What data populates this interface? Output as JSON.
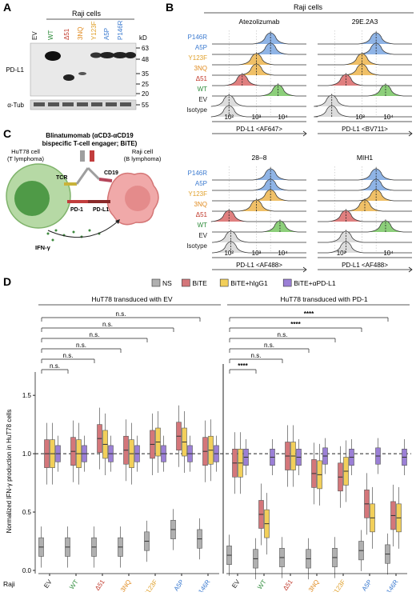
{
  "panel_labels": {
    "a": "A",
    "b": "B",
    "c": "C",
    "d": "D"
  },
  "colors": {
    "EV": "#222222",
    "WT": "#2e8b3a",
    "d51": "#c0392b",
    "3NQ": "#e08a1e",
    "Y123F": "#e0a02a",
    "A5P": "#3c7bd0",
    "P146R": "#3c7bd0",
    "NS": "#b0b0b0",
    "BiTE": "#d4767a",
    "hIgG1": "#f2cf5a",
    "aPDL1": "#9b7fd6",
    "fill_P146R": "#8fb4e6",
    "fill_A5P": "#8fb4e6",
    "fill_Y123F": "#f0c067",
    "fill_3NQ": "#f0c067",
    "fill_d51": "#e07f7f",
    "fill_WT": "#8ccf7a",
    "fill_EV": "#dcdcdc",
    "fill_Iso": "#dcdcdc"
  },
  "panel_a": {
    "title": "Raji cells",
    "lanes": [
      "EV",
      "WT",
      "Δ51",
      "3NQ",
      "Y123F",
      "A5P",
      "P146R"
    ],
    "kd_label": "kD",
    "markers": [
      "63",
      "48",
      "35",
      "25",
      "20",
      "55"
    ],
    "row_labels": [
      "PD-L1",
      "α-Tub"
    ]
  },
  "panel_b": {
    "title": "Raji cells",
    "row_labels": [
      "P146R",
      "A5P",
      "Y123F",
      "3NQ",
      "Δ51",
      "WT",
      "EV",
      "Isotype"
    ],
    "plots": [
      {
        "title": "Atezolizumab",
        "xlabel": "PD-L1 <AF647>",
        "ticks": [
          "10²",
          "10³",
          "10⁴"
        ]
      },
      {
        "title": "29E.2A3",
        "xlabel": "PD-L1 <BV711>",
        "ticks": [
          "10³",
          "10⁴"
        ]
      },
      {
        "title": "28–8",
        "xlabel": "PD-L1 <AF488>",
        "ticks": [
          "10²",
          "10³",
          "10⁴"
        ]
      },
      {
        "title": "MIH1",
        "xlabel": "PD-L1 <AF488>",
        "ticks": [
          "10²",
          "10⁴"
        ]
      }
    ]
  },
  "panel_c": {
    "title1": "Blinatumomab (αCD3-αCD19",
    "title2": "bispecific T-cell engager; BiTE)",
    "t_cell1": "HuT78 cell",
    "t_cell2": "(T lymphoma)",
    "b_cell1": "Raji cell",
    "b_cell2": "(B lymphoma)",
    "tcr": "TCR",
    "cd19": "CD19",
    "pd1": "PD-1",
    "pdl1": "PD-L1",
    "ifn": "IFN-γ"
  },
  "panel_d": {
    "legend": [
      "NS",
      "BiTE",
      "BiTE+hIgG1",
      "BiTE+αPD-L1"
    ],
    "group_left": "HuT78 transduced with EV",
    "group_right": "HuT78 transduced with PD-1",
    "ylabel": "Normalized IFN-γ production in HuT78 cells",
    "yticks": [
      "0.0",
      "0.5",
      "1.0",
      "1.5"
    ],
    "x_prefix": "Raji",
    "sig_left": [
      "n.s.",
      "n.s.",
      "n.s.",
      "n.s.",
      "n.s.",
      "n.s."
    ],
    "sig_right": [
      "****",
      "****",
      "n.s.",
      "n.s.",
      "n.s.",
      "****"
    ]
  },
  "chart_data": {
    "type": "box",
    "ylim": [
      0,
      1.7
    ],
    "categories": [
      "EV",
      "WT",
      "Δ51",
      "3NQ",
      "Y123F",
      "A5P",
      "P146R"
    ],
    "series": [
      {
        "name": "NS",
        "ev": [
          0.2,
          0.2,
          0.2,
          0.2,
          0.25,
          0.35,
          0.27
        ],
        "pd1": [
          0.13,
          0.1,
          0.11,
          0.1,
          0.11,
          0.17,
          0.14
        ]
      },
      {
        "name": "BiTE",
        "ev": [
          1.0,
          1.02,
          1.13,
          1.03,
          1.08,
          1.15,
          1.02
        ],
        "pd1": [
          0.92,
          0.48,
          0.98,
          0.83,
          0.8,
          0.57,
          0.47
        ]
      },
      {
        "name": "BiTE+hIgG1",
        "ev": [
          1.0,
          1.0,
          1.08,
          1.0,
          1.1,
          1.1,
          1.03
        ],
        "pd1": [
          0.92,
          0.4,
          0.98,
          0.82,
          0.85,
          0.45,
          0.45
        ]
      },
      {
        "name": "BiTE+αPD-L1",
        "ev": [
          1.0,
          1.0,
          1.0,
          1.0,
          1.0,
          1.0,
          1.0
        ],
        "pd1": [
          0.97,
          0.97,
          0.97,
          0.98,
          0.97,
          0.98,
          0.97
        ]
      }
    ]
  }
}
